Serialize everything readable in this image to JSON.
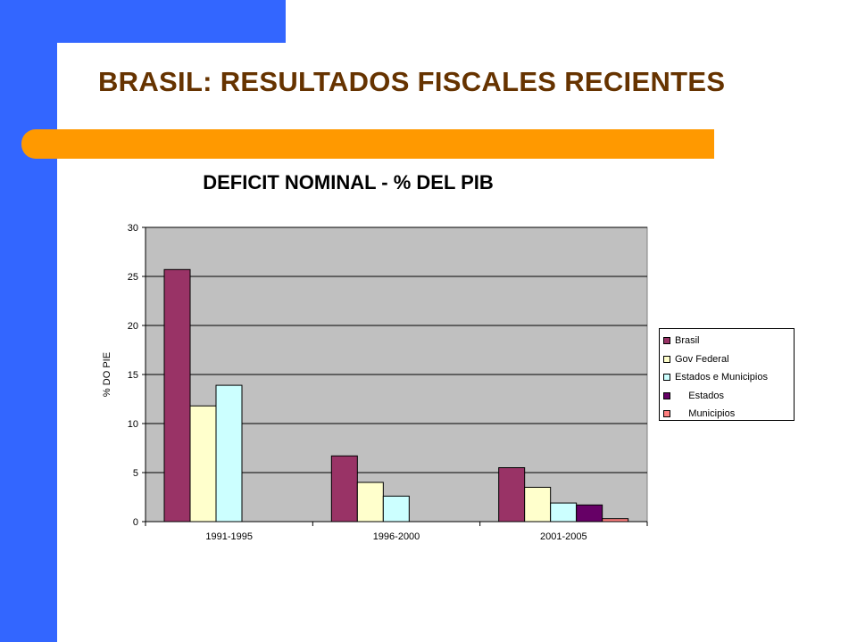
{
  "slide": {
    "title": "BRASIL:  RESULTADOS FISCALES RECIENTES",
    "colors": {
      "side_band": "#3366ff",
      "accent_bar": "#ff9900",
      "title": "#663300"
    }
  },
  "chart_data": {
    "type": "bar",
    "title": "DEFICIT NOMINAL -  % DEL  PIB",
    "xlabel": "",
    "ylabel": "% DO PIE",
    "ylim": [
      0,
      30
    ],
    "yticks": [
      0,
      5,
      10,
      15,
      20,
      25,
      30
    ],
    "grid": true,
    "legend_position": "right",
    "plot_background": "#c0c0c0",
    "categories": [
      "1991-1995",
      "1996-2000",
      "2001-2005"
    ],
    "series": [
      {
        "name": "Brasil",
        "color": "#993366",
        "values": [
          25.7,
          6.7,
          5.5
        ]
      },
      {
        "name": "Gov Federal",
        "color": "#ffffcc",
        "values": [
          11.8,
          4.0,
          3.5
        ]
      },
      {
        "name": "Estados e Municipios",
        "color": "#ccffff",
        "values": [
          13.9,
          2.6,
          1.9
        ]
      },
      {
        "name": "     Estados",
        "color": "#660066",
        "values": [
          null,
          null,
          1.7
        ]
      },
      {
        "name": "     Municipios",
        "color": "#ff8080",
        "values": [
          null,
          null,
          0.3
        ]
      }
    ]
  }
}
